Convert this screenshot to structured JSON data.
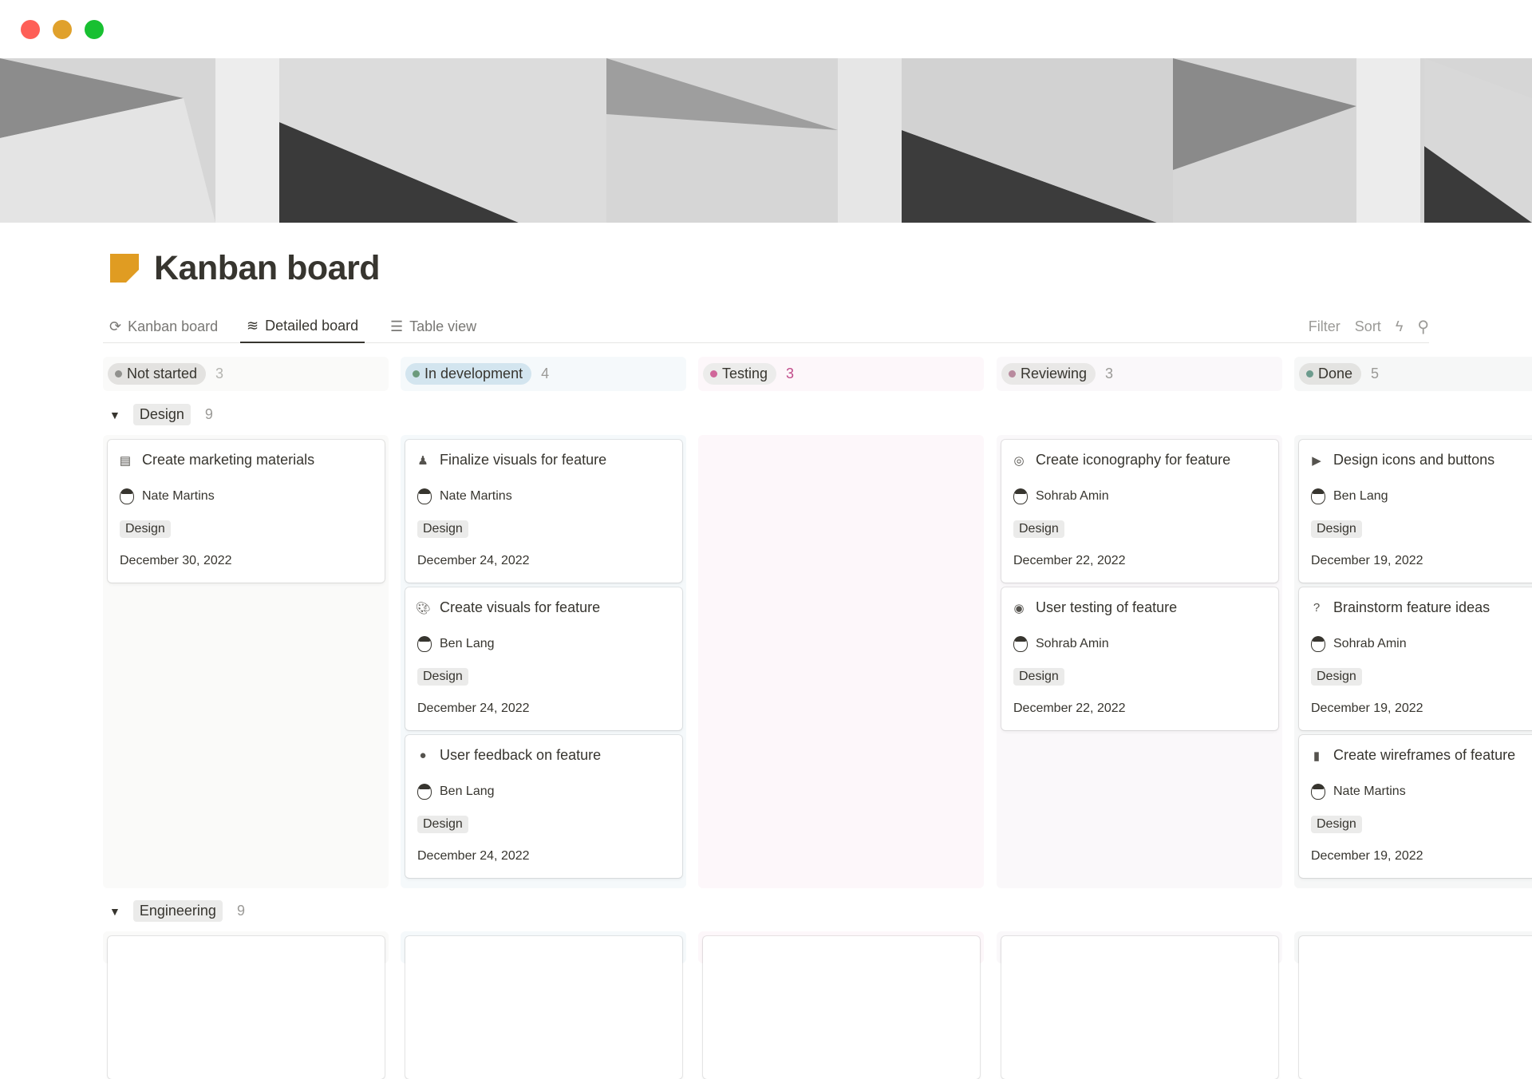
{
  "window": {
    "controls": [
      {
        "name": "close",
        "color": "#fe5f57"
      },
      {
        "name": "minimize",
        "color": "#e0a12c"
      },
      {
        "name": "zoom",
        "color": "#18c031"
      }
    ]
  },
  "page": {
    "title": "Kanban board",
    "icon": "sticky-note-icon",
    "icon_color": "#e09c22"
  },
  "tabs": [
    {
      "label": "Kanban board",
      "icon": "kanban-icon",
      "active": false
    },
    {
      "label": "Detailed board",
      "icon": "waves-icon",
      "active": true
    },
    {
      "label": "Table view",
      "icon": "list-icon",
      "active": false
    }
  ],
  "toolbar": {
    "filter": "Filter",
    "sort": "Sort",
    "automation_icon": "lightning-icon",
    "search_icon": "search-icon"
  },
  "columns": [
    {
      "status": "Not started",
      "count": "3",
      "dot": "#91918e",
      "pill_bg": "#e3e2e0",
      "bg": "#fafaf9",
      "count_color": "#b4b4b0"
    },
    {
      "status": "In development",
      "count": "4",
      "dot": "#6c9b7d",
      "pill_bg": "#d3e5ef",
      "bg": "#f5f9fb",
      "count_color": "#9b9a97"
    },
    {
      "status": "Testing",
      "count": "3",
      "dot": "#d0679a",
      "pill_bg": "#ececeb",
      "bg": "#fdf7fa",
      "count_color": "#c14c8a"
    },
    {
      "status": "Reviewing",
      "count": "3",
      "dot": "#b88a9e",
      "pill_bg": "#e9e8e7",
      "bg": "#faf8fa",
      "count_color": "#9b9a97"
    },
    {
      "status": "Done",
      "count": "5",
      "dot": "#6c9b8d",
      "pill_bg": "#e3e3e1",
      "bg": "#f6f7f7",
      "count_color": "#9b9a97"
    }
  ],
  "groups": [
    {
      "name": "Design",
      "count": "9",
      "columns": [
        [
          {
            "title": "Create marketing materials",
            "icon": "newspaper-icon",
            "glyph": "▤",
            "assignee": "Nate Martins",
            "tag": "Design",
            "date": "December 30, 2022"
          }
        ],
        [
          {
            "title": "Finalize visuals for feature",
            "icon": "stamp-icon",
            "glyph": "♟",
            "assignee": "Nate Martins",
            "tag": "Design",
            "date": "December 24, 2022"
          },
          {
            "title": "Create visuals for feature",
            "icon": "palette-icon",
            "glyph": "🎨︎",
            "assignee": "Ben Lang",
            "tag": "Design",
            "date": "December 24, 2022"
          },
          {
            "title": "User feedback on feature",
            "icon": "speech-bubble-icon",
            "glyph": "●",
            "assignee": "Ben Lang",
            "tag": "Design",
            "date": "December 24, 2022"
          }
        ],
        [],
        [
          {
            "title": "Create iconography for feature",
            "icon": "target-icon",
            "glyph": "◎",
            "assignee": "Sohrab Amin",
            "tag": "Design",
            "date": "December 22, 2022"
          },
          {
            "title": "User testing of feature",
            "icon": "user-circle-icon",
            "glyph": "◉",
            "assignee": "Sohrab Amin",
            "tag": "Design",
            "date": "December 22, 2022"
          }
        ],
        [
          {
            "title": "Design icons and buttons",
            "icon": "play-circle-icon",
            "glyph": "▶",
            "assignee": "Ben Lang",
            "tag": "Design",
            "date": "December 19, 2022"
          },
          {
            "title": "Brainstorm feature ideas",
            "icon": "question-bubble-icon",
            "glyph": "?",
            "assignee": "Sohrab Amin",
            "tag": "Design",
            "date": "December 19, 2022"
          },
          {
            "title": "Create wireframes of feature",
            "icon": "phone-icon",
            "glyph": "▮",
            "assignee": "Nate Martins",
            "tag": "Design",
            "date": "December 19, 2022"
          }
        ]
      ]
    },
    {
      "name": "Engineering",
      "count": "9"
    }
  ]
}
